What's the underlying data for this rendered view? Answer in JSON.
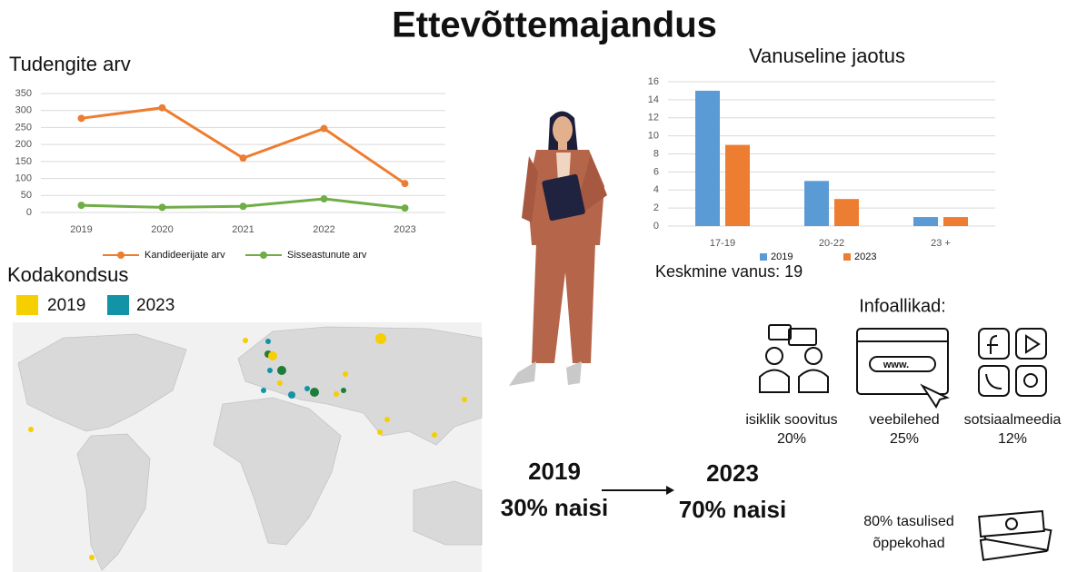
{
  "title": "Ettevõttemajandus",
  "chart_data": [
    {
      "type": "line",
      "title": "Tudengite arv",
      "categories": [
        "2019",
        "2020",
        "2021",
        "2022",
        "2023"
      ],
      "series": [
        {
          "name": "Kandideerijate arv",
          "color": "#ed7d31",
          "values": [
            277,
            308,
            160,
            247,
            85
          ]
        },
        {
          "name": "Sisseastunute arv",
          "color": "#70ad47",
          "values": [
            21,
            15,
            18,
            40,
            13
          ]
        }
      ],
      "ylim": [
        0,
        350
      ],
      "yticks": [
        0,
        50,
        100,
        150,
        200,
        250,
        300,
        350
      ],
      "grid": true,
      "legend": "bottom"
    },
    {
      "type": "bar",
      "title": "Vanuseline jaotus",
      "categories": [
        "17-19",
        "20-22",
        "23 +"
      ],
      "series": [
        {
          "name": "2019",
          "color": "#5b9bd5",
          "values": [
            15,
            5,
            1
          ]
        },
        {
          "name": "2023",
          "color": "#ed7d31",
          "values": [
            9,
            3,
            1
          ]
        }
      ],
      "ylim": [
        0,
        16
      ],
      "yticks": [
        0,
        2,
        4,
        6,
        8,
        10,
        12,
        14,
        16
      ],
      "grid": true,
      "legend": "bottom"
    }
  ],
  "citizenship": {
    "title": "Kodakondsus",
    "legend": [
      {
        "label": "2019",
        "color": "#f5cf00"
      },
      {
        "label": "2023",
        "color": "#1393a6"
      }
    ]
  },
  "average_age": "Keskmine vanus: 19",
  "sources": {
    "title": "Infoallikad:",
    "icon_text": "www.",
    "items": [
      {
        "label": "isiklik soovitus",
        "value": "20%"
      },
      {
        "label": "veebilehed",
        "value": "25%"
      },
      {
        "label": "sotsiaalmeedia",
        "value": "12%"
      }
    ]
  },
  "gender": {
    "from": {
      "year": "2019",
      "text": "30% naisi"
    },
    "to": {
      "year": "2023",
      "text": "70% naisi"
    }
  },
  "paid": {
    "lines": [
      "80% tasulised",
      "õppekohad"
    ]
  }
}
